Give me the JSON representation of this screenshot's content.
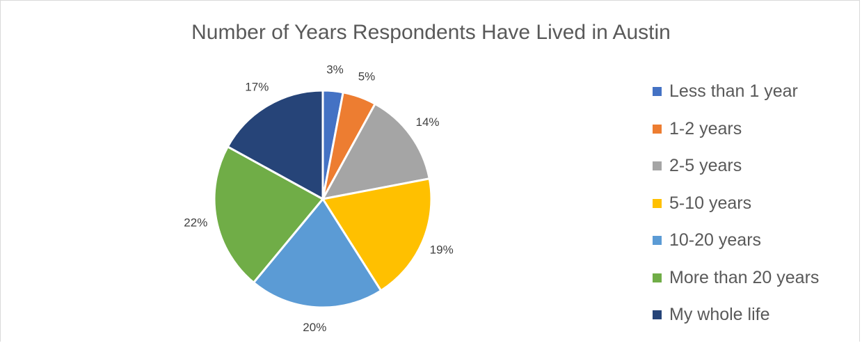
{
  "chart_data": {
    "type": "pie",
    "title": "Number of Years Respondents Have Lived in Austin",
    "legend_position": "right",
    "slices": [
      {
        "label": "Less than 1 year",
        "value": 3,
        "display": "3%",
        "color": "#4472c4"
      },
      {
        "label": "1-2 years",
        "value": 5,
        "display": "5%",
        "color": "#ed7d31"
      },
      {
        "label": "2-5 years",
        "value": 14,
        "display": "14%",
        "color": "#a5a5a5"
      },
      {
        "label": "5-10 years",
        "value": 19,
        "display": "19%",
        "color": "#ffc000"
      },
      {
        "label": "10-20 years",
        "value": 20,
        "display": "20%",
        "color": "#5b9bd5"
      },
      {
        "label": "More than 20 years",
        "value": 22,
        "display": "22%",
        "color": "#70ad47"
      },
      {
        "label": "My whole life",
        "value": 17,
        "display": "17%",
        "color": "#264478"
      }
    ]
  }
}
